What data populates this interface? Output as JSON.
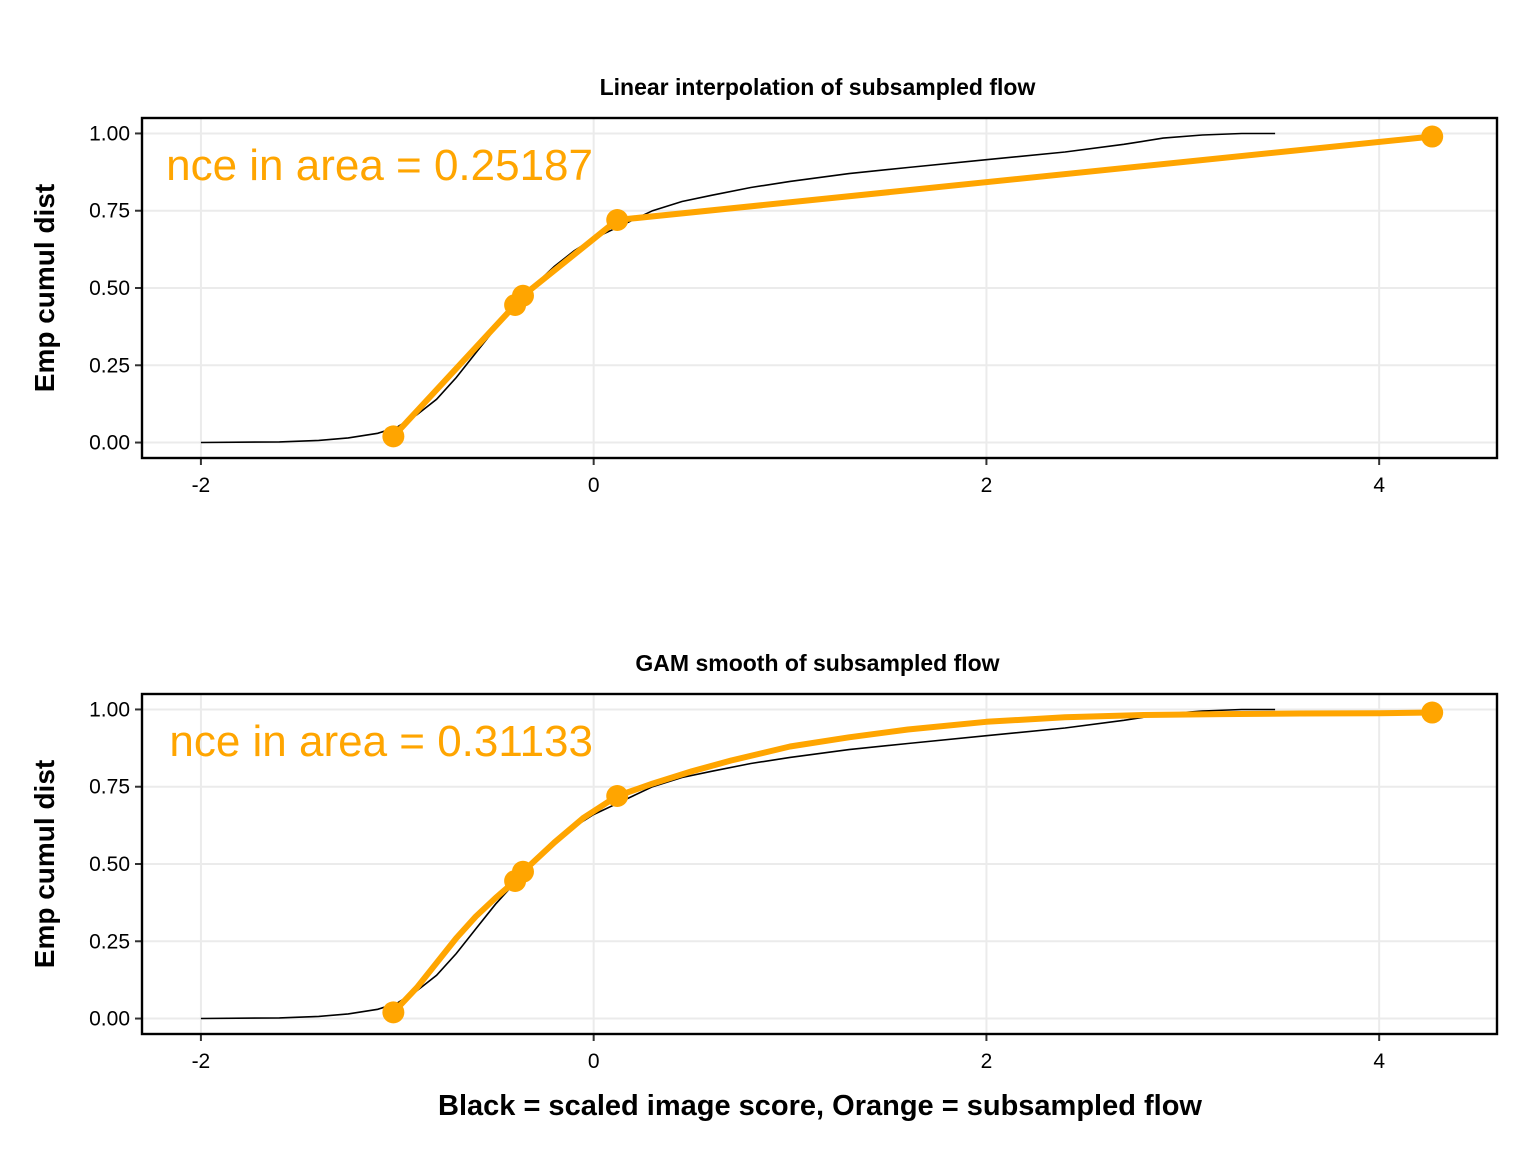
{
  "figure": {
    "xlabel": "Black = scaled image score, Orange = subsampled flow"
  },
  "colors": {
    "reference": "#000000",
    "flow": "#FFA500"
  },
  "chart_data": [
    {
      "type": "line",
      "title": "Linear interpolation of subsampled flow",
      "ylabel": "Emp cumul dist",
      "annotation": "nce in area = 0.25187",
      "xlim": [
        -2.3,
        4.6
      ],
      "ylim": [
        -0.05,
        1.05
      ],
      "xticks": [
        -2,
        0,
        2,
        4
      ],
      "yticks": [
        0,
        0.25,
        0.5,
        0.75,
        1.0
      ],
      "ytick_labels": [
        "0.00",
        "0.25",
        "0.50",
        "0.75",
        "1.00"
      ],
      "grid": true,
      "series": [
        {
          "kind": "reference-ecdf",
          "x": [
            -2.0,
            -1.6,
            -1.4,
            -1.25,
            -1.1,
            -1.0,
            -0.9,
            -0.8,
            -0.7,
            -0.6,
            -0.5,
            -0.4,
            -0.3,
            -0.2,
            -0.1,
            0.0,
            0.1,
            0.2,
            0.3,
            0.45,
            0.6,
            0.8,
            1.0,
            1.3,
            1.6,
            2.0,
            2.4,
            2.7,
            2.9,
            3.1,
            3.3,
            3.47
          ],
          "y": [
            0.0,
            0.002,
            0.007,
            0.015,
            0.03,
            0.05,
            0.09,
            0.14,
            0.21,
            0.29,
            0.37,
            0.44,
            0.51,
            0.57,
            0.62,
            0.66,
            0.69,
            0.72,
            0.75,
            0.78,
            0.8,
            0.825,
            0.845,
            0.87,
            0.89,
            0.915,
            0.94,
            0.965,
            0.985,
            0.995,
            1.0,
            1.0
          ]
        },
        {
          "kind": "subsampled-flow",
          "interpolation": "linear",
          "x": [
            -1.02,
            -0.4,
            -0.36,
            0.12,
            4.27
          ],
          "y": [
            0.02,
            0.445,
            0.475,
            0.72,
            0.99
          ]
        }
      ]
    },
    {
      "type": "line",
      "title": "GAM smooth of subsampled flow",
      "ylabel": "Emp cumul dist",
      "annotation": "nce in area = 0.31133",
      "xlim": [
        -2.3,
        4.6
      ],
      "ylim": [
        -0.05,
        1.05
      ],
      "xticks": [
        -2,
        0,
        2,
        4
      ],
      "yticks": [
        0,
        0.25,
        0.5,
        0.75,
        1.0
      ],
      "ytick_labels": [
        "0.00",
        "0.25",
        "0.50",
        "0.75",
        "1.00"
      ],
      "grid": true,
      "series": [
        {
          "kind": "reference-ecdf",
          "x": [
            -2.0,
            -1.6,
            -1.4,
            -1.25,
            -1.1,
            -1.0,
            -0.9,
            -0.8,
            -0.7,
            -0.6,
            -0.5,
            -0.4,
            -0.3,
            -0.2,
            -0.1,
            0.0,
            0.1,
            0.2,
            0.3,
            0.45,
            0.6,
            0.8,
            1.0,
            1.3,
            1.6,
            2.0,
            2.4,
            2.7,
            2.9,
            3.1,
            3.3,
            3.47
          ],
          "y": [
            0.0,
            0.002,
            0.007,
            0.015,
            0.03,
            0.05,
            0.09,
            0.14,
            0.21,
            0.29,
            0.37,
            0.44,
            0.51,
            0.57,
            0.62,
            0.66,
            0.69,
            0.72,
            0.75,
            0.78,
            0.8,
            0.825,
            0.845,
            0.87,
            0.89,
            0.915,
            0.94,
            0.965,
            0.985,
            0.995,
            1.0,
            1.0
          ]
        },
        {
          "kind": "subsampled-flow-points",
          "x": [
            -1.02,
            -0.4,
            -0.36,
            0.12,
            4.27
          ],
          "y": [
            0.02,
            0.445,
            0.475,
            0.72,
            0.99
          ]
        },
        {
          "kind": "gam-smooth",
          "x": [
            -1.02,
            -0.9,
            -0.8,
            -0.7,
            -0.6,
            -0.5,
            -0.4,
            -0.36,
            -0.2,
            -0.05,
            0.12,
            0.3,
            0.5,
            0.7,
            1.0,
            1.3,
            1.6,
            2.0,
            2.4,
            2.8,
            3.2,
            3.6,
            4.0,
            4.27
          ],
          "y": [
            0.02,
            0.1,
            0.18,
            0.26,
            0.33,
            0.39,
            0.445,
            0.475,
            0.57,
            0.65,
            0.72,
            0.76,
            0.8,
            0.835,
            0.88,
            0.91,
            0.935,
            0.96,
            0.975,
            0.982,
            0.985,
            0.987,
            0.988,
            0.99
          ]
        }
      ]
    }
  ]
}
